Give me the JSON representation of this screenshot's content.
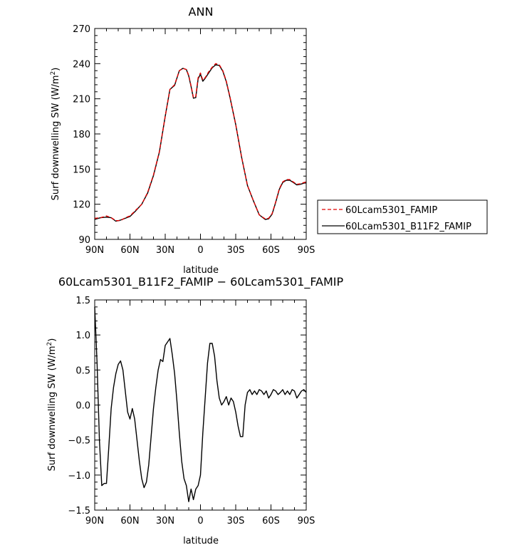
{
  "chart_data": [
    {
      "type": "line",
      "title": "ANN",
      "xlabel": "latitude",
      "ylabel_main": "Surf downwelling SW (W/m",
      "ylabel_sup": "2",
      "ylabel_end": ")",
      "x_ticks": [
        "90N",
        "60N",
        "30N",
        "0",
        "30S",
        "60S",
        "90S"
      ],
      "y_ticks": [
        "90",
        "120",
        "150",
        "180",
        "210",
        "240",
        "270"
      ],
      "xlim": [
        90,
        -90
      ],
      "ylim": [
        90,
        270
      ],
      "legend_position": "right",
      "x": [
        90,
        85,
        80,
        76,
        72,
        68,
        64,
        60,
        55,
        50,
        45,
        40,
        35,
        30,
        26,
        22,
        18,
        15,
        12,
        10,
        8,
        6,
        4,
        2,
        0,
        -2,
        -4,
        -7,
        -10,
        -13,
        -16,
        -19,
        -22,
        -25,
        -30,
        -35,
        -40,
        -45,
        -50,
        -55,
        -58,
        -61,
        -64,
        -67,
        -70,
        -73,
        -76,
        -79,
        -82,
        -85,
        -88,
        -90
      ],
      "series": [
        {
          "name": "60Lcam5301_FAMIP",
          "color": "#e00000",
          "dash": true,
          "values": [
            108,
            108.5,
            110,
            108.5,
            106,
            106,
            108.5,
            110,
            115,
            120,
            130,
            145,
            165,
            195,
            218,
            222,
            234,
            236,
            235,
            230,
            221,
            211,
            212,
            228,
            232,
            226,
            228,
            233,
            237,
            240,
            239,
            234,
            225,
            212,
            188,
            160,
            136,
            123,
            111,
            107.5,
            108,
            112,
            122,
            133,
            139,
            141,
            141,
            139,
            137,
            137.5,
            138.5,
            139
          ]
        },
        {
          "name": "60Lcam5301_B11F2_FAMIP",
          "color": "#000000",
          "dash": false,
          "values": [
            107,
            108.5,
            109,
            108.5,
            105.5,
            106.5,
            108,
            109.5,
            114.5,
            120,
            129.5,
            144.5,
            164.5,
            195,
            218,
            221.5,
            234,
            236,
            235,
            229.5,
            220.5,
            210.5,
            211,
            227,
            231,
            225,
            227.5,
            232,
            236.5,
            239,
            238.5,
            233.5,
            224.5,
            211.5,
            188,
            160,
            136,
            123,
            111,
            107,
            107.5,
            111.5,
            121.5,
            132.5,
            138.5,
            140.5,
            140.5,
            138.5,
            136.5,
            137,
            138,
            139
          ]
        }
      ]
    },
    {
      "type": "line",
      "title": "60Lcam5301_B11F2_FAMIP − 60Lcam5301_FAMIP",
      "xlabel": "latitude",
      "ylabel_main": "Surf downwelling SW (W/m",
      "ylabel_sup": "2",
      "ylabel_end": ")",
      "x_ticks": [
        "90N",
        "60N",
        "30N",
        "0",
        "30S",
        "60S",
        "90S"
      ],
      "y_ticks": [
        "−1.5",
        "−1.0",
        "−0.5",
        "0.0",
        "0.5",
        "1.0",
        "1.5"
      ],
      "xlim": [
        90,
        -90
      ],
      "ylim": [
        -1.5,
        1.5
      ],
      "x": [
        90,
        88,
        86,
        84,
        82,
        80,
        78,
        76,
        74,
        72,
        70,
        68,
        66,
        64,
        62,
        60,
        58,
        56,
        54,
        52,
        50,
        48,
        46,
        44,
        42,
        40,
        38,
        36,
        34,
        32,
        30,
        28,
        26,
        24,
        22,
        20,
        18,
        16,
        14,
        12,
        10,
        8,
        6,
        4,
        2,
        0,
        -2,
        -4,
        -6,
        -8,
        -10,
        -12,
        -14,
        -16,
        -18,
        -20,
        -22,
        -24,
        -26,
        -28,
        -30,
        -32,
        -34,
        -36,
        -38,
        -40,
        -42,
        -44,
        -46,
        -48,
        -50,
        -52,
        -54,
        -56,
        -58,
        -60,
        -62,
        -64,
        -66,
        -68,
        -70,
        -72,
        -74,
        -76,
        -78,
        -80,
        -82,
        -84,
        -86,
        -88,
        -90
      ],
      "series": [
        {
          "name": "",
          "color": "#000000",
          "dash": false,
          "values": [
            1.4,
            0.6,
            -0.5,
            -1.15,
            -1.12,
            -1.12,
            -0.6,
            -0.05,
            0.25,
            0.45,
            0.58,
            0.63,
            0.5,
            0.2,
            -0.1,
            -0.2,
            -0.05,
            -0.2,
            -0.5,
            -0.8,
            -1.05,
            -1.18,
            -1.1,
            -0.85,
            -0.45,
            -0.05,
            0.25,
            0.5,
            0.65,
            0.62,
            0.85,
            0.9,
            0.95,
            0.72,
            0.45,
            0.05,
            -0.4,
            -0.8,
            -1.05,
            -1.15,
            -1.38,
            -1.2,
            -1.35,
            -1.2,
            -1.15,
            -1.0,
            -0.4,
            0.1,
            0.6,
            0.88,
            0.88,
            0.7,
            0.35,
            0.1,
            0.0,
            0.05,
            0.12,
            0.0,
            0.1,
            0.05,
            -0.1,
            -0.3,
            -0.45,
            -0.45,
            0.0,
            0.18,
            0.22,
            0.15,
            0.2,
            0.15,
            0.22,
            0.2,
            0.15,
            0.2,
            0.1,
            0.15,
            0.22,
            0.2,
            0.15,
            0.18,
            0.22,
            0.15,
            0.2,
            0.15,
            0.22,
            0.2,
            0.1,
            0.15,
            0.2,
            0.22,
            0.18
          ]
        }
      ]
    }
  ]
}
